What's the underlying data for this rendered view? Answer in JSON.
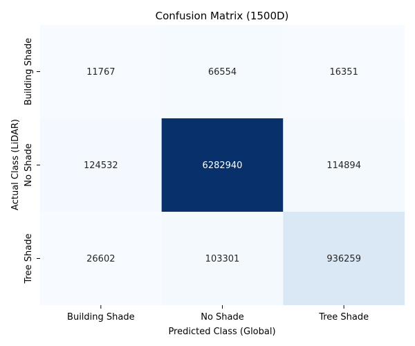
{
  "chart_data": {
    "type": "heatmap",
    "title": "Confusion Matrix (1500D)",
    "xlabel": "Predicted Class (Global)",
    "ylabel": "Actual Class (LiDAR)",
    "x_categories": [
      "Building Shade",
      "No Shade",
      "Tree Shade"
    ],
    "y_categories": [
      "Building Shade",
      "No Shade",
      "Tree Shade"
    ],
    "values": [
      [
        11767,
        66554,
        16351
      ],
      [
        124532,
        6282940,
        114894
      ],
      [
        26602,
        103301,
        936259
      ]
    ],
    "colormap": "Blues",
    "colorbar": false,
    "value_range": [
      11767,
      6282940
    ]
  }
}
